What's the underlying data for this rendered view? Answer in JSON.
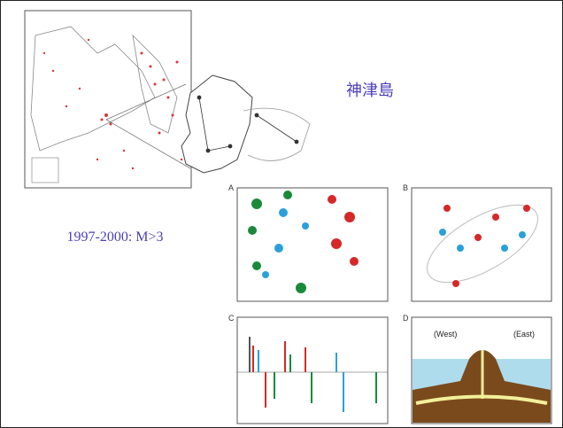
{
  "title": "神津島",
  "caption": "1997-2000: M>3",
  "panels": {
    "a": "A",
    "b": "B",
    "c": "C",
    "d": "D"
  },
  "diagram": {
    "west": "(West)",
    "east": "(East)"
  }
}
